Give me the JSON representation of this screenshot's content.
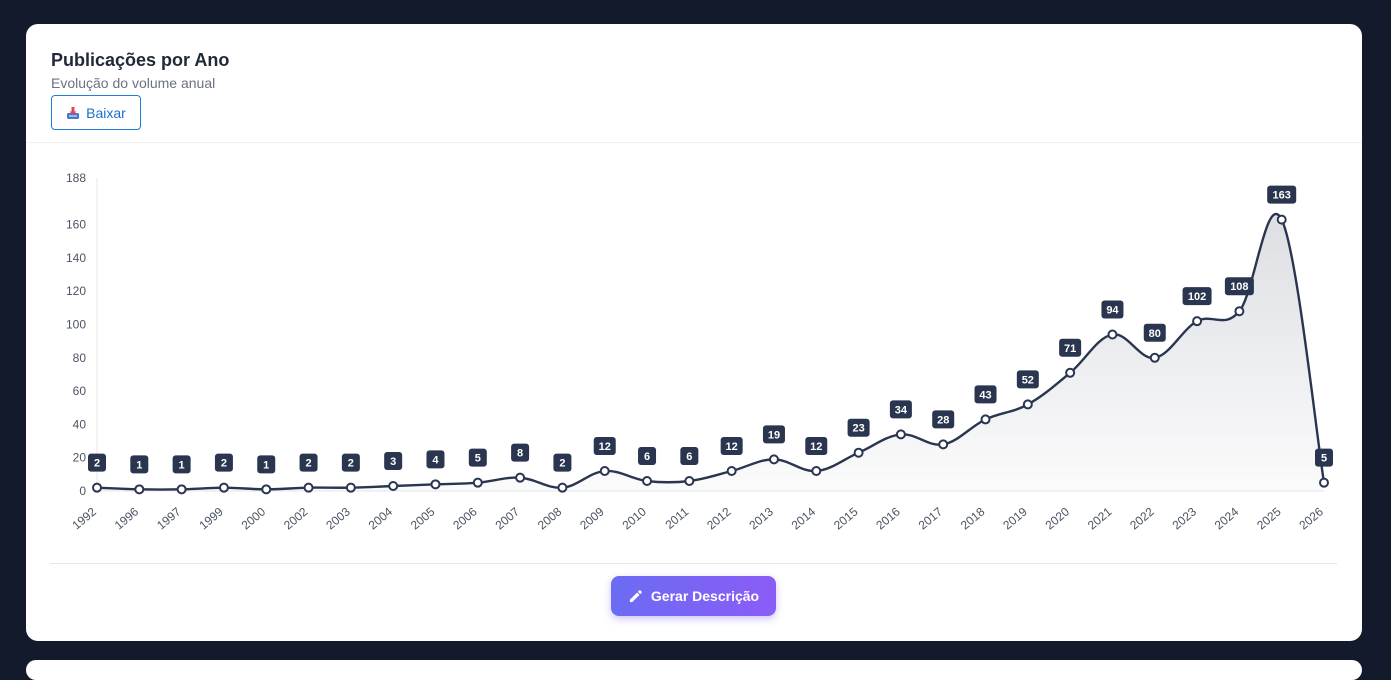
{
  "header": {
    "title": "Publicações por Ano",
    "subtitle": "Evolução do volume anual",
    "download_label": "Baixar",
    "download_icon": "download-tray-icon"
  },
  "footer": {
    "generate_label": "Gerar Descrição",
    "generate_icon": "pencil-icon"
  },
  "colors": {
    "line": "#2a3550",
    "label_bg": "#2a3550",
    "button_gradient_start": "#6b6cf3",
    "button_gradient_end": "#8b5cf6",
    "accent_blue": "#1a6fc7"
  },
  "chart_data": {
    "type": "area",
    "title": "",
    "xlabel": "",
    "ylabel": "",
    "categories": [
      "1992",
      "1996",
      "1997",
      "1999",
      "2000",
      "2002",
      "2003",
      "2004",
      "2005",
      "2006",
      "2007",
      "2008",
      "2009",
      "2010",
      "2011",
      "2012",
      "2013",
      "2014",
      "2015",
      "2016",
      "2017",
      "2018",
      "2019",
      "2020",
      "2021",
      "2022",
      "2023",
      "2024",
      "2025",
      "2026"
    ],
    "values": [
      2,
      1,
      1,
      2,
      1,
      2,
      2,
      3,
      4,
      5,
      8,
      2,
      12,
      6,
      6,
      12,
      19,
      12,
      23,
      34,
      28,
      43,
      52,
      71,
      94,
      80,
      102,
      108,
      163,
      5
    ],
    "ylim": [
      0,
      188
    ],
    "yticks": [
      0,
      20,
      40,
      60,
      80,
      100,
      120,
      140,
      160,
      188
    ],
    "grid": false,
    "legend": "none",
    "data_labels": true
  }
}
